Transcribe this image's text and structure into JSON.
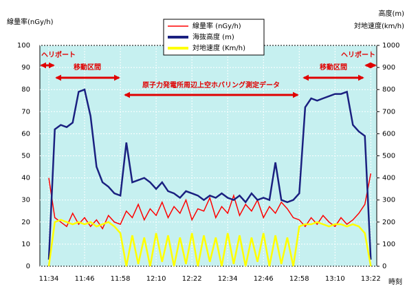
{
  "chart_data": {
    "type": "line",
    "y_label": "線量率(nGy/h)",
    "y2_label": "高度(m)",
    "y2_label_2": "対地速度(km/h)",
    "x_label": "時刻",
    "annotations": [
      "ヘリポート",
      "移動区間",
      "原子力発電所周辺上空ホバリング測定データ",
      "移動区間",
      "ヘリポート"
    ],
    "x": [
      "11:34",
      "11:36",
      "11:38",
      "11:40",
      "11:42",
      "11:44",
      "11:46",
      "11:48",
      "11:50",
      "11:52",
      "11:54",
      "11:56",
      "11:58",
      "12:00",
      "12:02",
      "12:04",
      "12:06",
      "12:08",
      "12:10",
      "12:12",
      "12:14",
      "12:16",
      "12:18",
      "12:20",
      "12:22",
      "12:24",
      "12:26",
      "12:28",
      "12:30",
      "12:32",
      "12:34",
      "12:36",
      "12:38",
      "12:40",
      "12:42",
      "12:44",
      "12:46",
      "12:48",
      "12:50",
      "12:52",
      "12:54",
      "12:56",
      "12:58",
      "13:00",
      "13:02",
      "13:04",
      "13:06",
      "13:08",
      "13:10",
      "13:12",
      "13:14",
      "13:16",
      "13:18",
      "13:20",
      "13:22"
    ],
    "series": [
      {
        "name": "線量率 (nGy/h)",
        "color": "#ff0000",
        "values": [
          40,
          22,
          20,
          18,
          24,
          19,
          22,
          18,
          21,
          17,
          23,
          20,
          19,
          25,
          22,
          28,
          21,
          26,
          23,
          29,
          22,
          27,
          24,
          30,
          21,
          26,
          25,
          31,
          22,
          27,
          24,
          32,
          23,
          28,
          25,
          30,
          22,
          27,
          24,
          29,
          26,
          22,
          21,
          18,
          22,
          19,
          23,
          20,
          18,
          22,
          19,
          21,
          24,
          28,
          42
        ]
      },
      {
        "name": "海抜高度 (m)",
        "color": "#1a2080",
        "axis": "y2",
        "values": [
          30,
          620,
          640,
          630,
          650,
          790,
          800,
          680,
          450,
          380,
          360,
          330,
          320,
          560,
          380,
          390,
          400,
          380,
          350,
          380,
          340,
          330,
          310,
          340,
          330,
          320,
          300,
          320,
          310,
          330,
          310,
          300,
          320,
          290,
          330,
          300,
          310,
          300,
          470,
          300,
          290,
          300,
          330,
          720,
          760,
          750,
          760,
          770,
          780,
          780,
          790,
          640,
          610,
          590,
          30
        ]
      },
      {
        "name": "対地速度 (Km/h)",
        "color": "#ffff00",
        "axis": "y2",
        "values": [
          0,
          200,
          210,
          200,
          190,
          200,
          190,
          200,
          180,
          190,
          200,
          180,
          150,
          0,
          140,
          10,
          130,
          0,
          150,
          20,
          140,
          0,
          130,
          10,
          150,
          0,
          140,
          20,
          130,
          0,
          150,
          10,
          140,
          0,
          130,
          20,
          150,
          0,
          140,
          10,
          130,
          0,
          180,
          190,
          190,
          200,
          190,
          180,
          190,
          190,
          180,
          190,
          180,
          150,
          0
        ]
      }
    ],
    "xlim": [
      "11:31",
      "13:24"
    ],
    "xticks": [
      "11:34",
      "11:46",
      "11:58",
      "12:10",
      "12:22",
      "12:34",
      "12:46",
      "12:58",
      "13:10",
      "13:22"
    ],
    "ylim": [
      0,
      100
    ],
    "yticks": [
      0,
      10,
      20,
      30,
      40,
      50,
      60,
      70,
      80,
      90,
      100
    ],
    "y2lim": [
      0,
      1000
    ],
    "y2ticks": [
      0,
      100,
      200,
      300,
      400,
      500,
      600,
      700,
      800,
      900,
      1000
    ],
    "grid": true
  }
}
